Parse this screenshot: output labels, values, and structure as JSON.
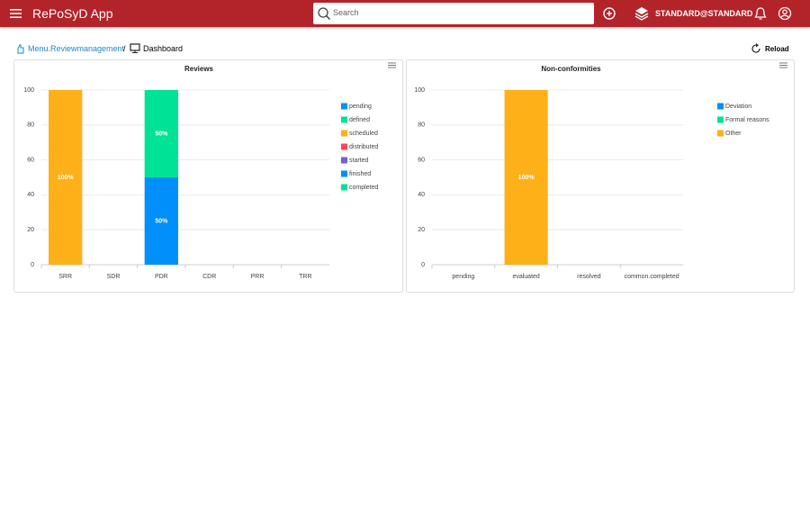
{
  "header": {
    "title": "RePoSyD App",
    "search_placeholder": "Search",
    "user": "STANDARD@STANDARD"
  },
  "breadcrumb": {
    "link": "Menu.Reviewmanagement",
    "separator": "/",
    "current": "Dashboard"
  },
  "reload": "Reload",
  "chart_data": [
    {
      "type": "bar",
      "stacked": true,
      "title": "Reviews",
      "grid": true,
      "categories": [
        "SRR",
        "SDR",
        "PDR",
        "CDR",
        "PRR",
        "TRR"
      ],
      "ylim": [
        0,
        100
      ],
      "yticks": [
        0,
        20,
        40,
        60,
        80,
        100
      ],
      "series": [
        {
          "name": "pending",
          "color": "#008FFB",
          "values": [
            0,
            0,
            0,
            0,
            0,
            0
          ]
        },
        {
          "name": "defined",
          "color": "#00E396",
          "values": [
            0,
            0,
            0,
            0,
            0,
            0
          ]
        },
        {
          "name": "scheduled",
          "color": "#FEB019",
          "values": [
            100,
            0,
            0,
            0,
            0,
            0
          ],
          "value_labels": [
            "100%",
            null,
            null,
            null,
            null,
            null
          ]
        },
        {
          "name": "distributed",
          "color": "#FF4560",
          "values": [
            0,
            0,
            0,
            0,
            0,
            0
          ]
        },
        {
          "name": "started",
          "color": "#775DD0",
          "values": [
            0,
            0,
            0,
            0,
            0,
            0
          ]
        },
        {
          "name": "finished",
          "color": "#008FFB",
          "values": [
            0,
            0,
            50,
            0,
            0,
            0
          ],
          "value_labels": [
            null,
            null,
            "50%",
            null,
            null,
            null
          ]
        },
        {
          "name": "completed",
          "color": "#00E396",
          "values": [
            0,
            0,
            50,
            0,
            0,
            0
          ],
          "value_labels": [
            null,
            null,
            "50%",
            null,
            null,
            null
          ]
        }
      ]
    },
    {
      "type": "bar",
      "stacked": true,
      "title": "Non-conformities",
      "grid": true,
      "categories": [
        "pending",
        "evaluated",
        "resolved",
        "common.completed"
      ],
      "ylim": [
        0,
        100
      ],
      "yticks": [
        0,
        20,
        40,
        60,
        80,
        100
      ],
      "series": [
        {
          "name": "Deviation",
          "color": "#008FFB",
          "values": [
            0,
            0,
            0,
            0
          ]
        },
        {
          "name": "Formal reasons",
          "color": "#00E396",
          "values": [
            0,
            0,
            0,
            0
          ]
        },
        {
          "name": "Other",
          "color": "#FEB019",
          "values": [
            0,
            100,
            0,
            0
          ],
          "value_labels": [
            null,
            "100%",
            null,
            null
          ]
        }
      ]
    }
  ]
}
